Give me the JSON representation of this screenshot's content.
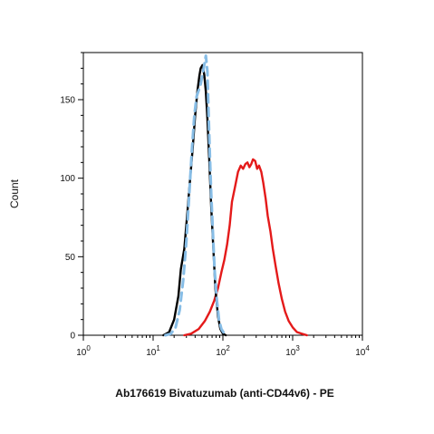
{
  "chart_data": {
    "type": "line",
    "title": "",
    "xlabel": "Ab176619 Bivatuzumab (anti-CD44v6) - PE",
    "ylabel": "Count",
    "x_scale": "log",
    "xlim": [
      1,
      10000
    ],
    "ylim": [
      0,
      180
    ],
    "x_ticks": [
      {
        "value": 1,
        "base": "10",
        "exp": "0"
      },
      {
        "value": 10,
        "base": "10",
        "exp": "1"
      },
      {
        "value": 100,
        "base": "10",
        "exp": "2"
      },
      {
        "value": 1000,
        "base": "10",
        "exp": "3"
      },
      {
        "value": 10000,
        "base": "10",
        "exp": "4"
      }
    ],
    "y_ticks": [
      "0",
      "50",
      "100",
      "150"
    ],
    "y_tick_values": [
      0,
      50,
      100,
      150
    ],
    "grid": false,
    "legend": "none",
    "series": [
      {
        "color": "#e41a1a",
        "style": "solid",
        "points": [
          [
            28,
            0
          ],
          [
            35,
            1
          ],
          [
            45,
            4
          ],
          [
            55,
            9
          ],
          [
            65,
            15
          ],
          [
            75,
            22
          ],
          [
            85,
            30
          ],
          [
            95,
            40
          ],
          [
            105,
            48
          ],
          [
            115,
            58
          ],
          [
            125,
            70
          ],
          [
            135,
            85
          ],
          [
            150,
            95
          ],
          [
            165,
            104
          ],
          [
            180,
            108
          ],
          [
            195,
            106
          ],
          [
            210,
            109
          ],
          [
            225,
            110
          ],
          [
            240,
            107
          ],
          [
            255,
            109
          ],
          [
            270,
            112
          ],
          [
            290,
            111
          ],
          [
            310,
            106
          ],
          [
            330,
            108
          ],
          [
            355,
            104
          ],
          [
            380,
            97
          ],
          [
            410,
            87
          ],
          [
            440,
            76
          ],
          [
            480,
            66
          ],
          [
            520,
            55
          ],
          [
            570,
            44
          ],
          [
            630,
            33
          ],
          [
            700,
            23
          ],
          [
            780,
            15
          ],
          [
            880,
            9
          ],
          [
            1000,
            5
          ],
          [
            1150,
            2
          ],
          [
            1350,
            1
          ],
          [
            1600,
            0
          ]
        ]
      },
      {
        "color": "#000000",
        "style": "solid",
        "points": [
          [
            14,
            0
          ],
          [
            17,
            2
          ],
          [
            20,
            10
          ],
          [
            23,
            25
          ],
          [
            25,
            42
          ],
          [
            28,
            55
          ],
          [
            31,
            78
          ],
          [
            34,
            100
          ],
          [
            37,
            120
          ],
          [
            40,
            140
          ],
          [
            43,
            155
          ],
          [
            46,
            165
          ],
          [
            48,
            170
          ],
          [
            51,
            172
          ],
          [
            54,
            166
          ],
          [
            57,
            155
          ],
          [
            60,
            138
          ],
          [
            64,
            110
          ],
          [
            68,
            82
          ],
          [
            73,
            55
          ],
          [
            78,
            30
          ],
          [
            85,
            12
          ],
          [
            92,
            4
          ],
          [
            100,
            1
          ],
          [
            110,
            0
          ]
        ]
      },
      {
        "color": "#87bde6",
        "style": "dashed",
        "points": [
          [
            15,
            0
          ],
          [
            18,
            1
          ],
          [
            21,
            5
          ],
          [
            24,
            16
          ],
          [
            27,
            35
          ],
          [
            30,
            60
          ],
          [
            33,
            90
          ],
          [
            36,
            118
          ],
          [
            39,
            140
          ],
          [
            42,
            152
          ],
          [
            45,
            156
          ],
          [
            48,
            160
          ],
          [
            51,
            166
          ],
          [
            54,
            172
          ],
          [
            57,
            178
          ],
          [
            60,
            168
          ],
          [
            62,
            145
          ],
          [
            65,
            115
          ],
          [
            68,
            90
          ],
          [
            72,
            65
          ],
          [
            76,
            42
          ],
          [
            82,
            22
          ],
          [
            88,
            10
          ],
          [
            95,
            4
          ],
          [
            105,
            1
          ],
          [
            115,
            0
          ]
        ]
      }
    ]
  }
}
